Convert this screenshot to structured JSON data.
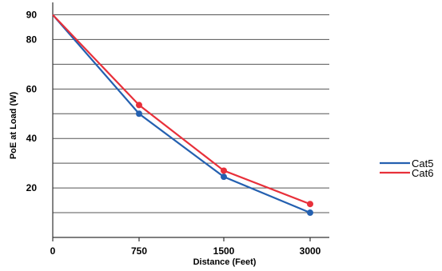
{
  "chart_data": {
    "type": "line",
    "xlabel": "Distance (Feet)",
    "ylabel": "PoE at Load (W)",
    "categories": [
      "0",
      "750",
      "1500",
      "3000"
    ],
    "y_ticks": [
      20,
      40,
      60,
      80,
      90
    ],
    "ylim": [
      0,
      95
    ],
    "grid": true,
    "legend_position": "right",
    "series": [
      {
        "name": "Cat5",
        "color": "#2460b0",
        "values": [
          90,
          50,
          24.5,
          10
        ]
      },
      {
        "name": "Cat6",
        "color": "#e8303a",
        "values": [
          90,
          53.5,
          27,
          13.5
        ]
      }
    ]
  }
}
